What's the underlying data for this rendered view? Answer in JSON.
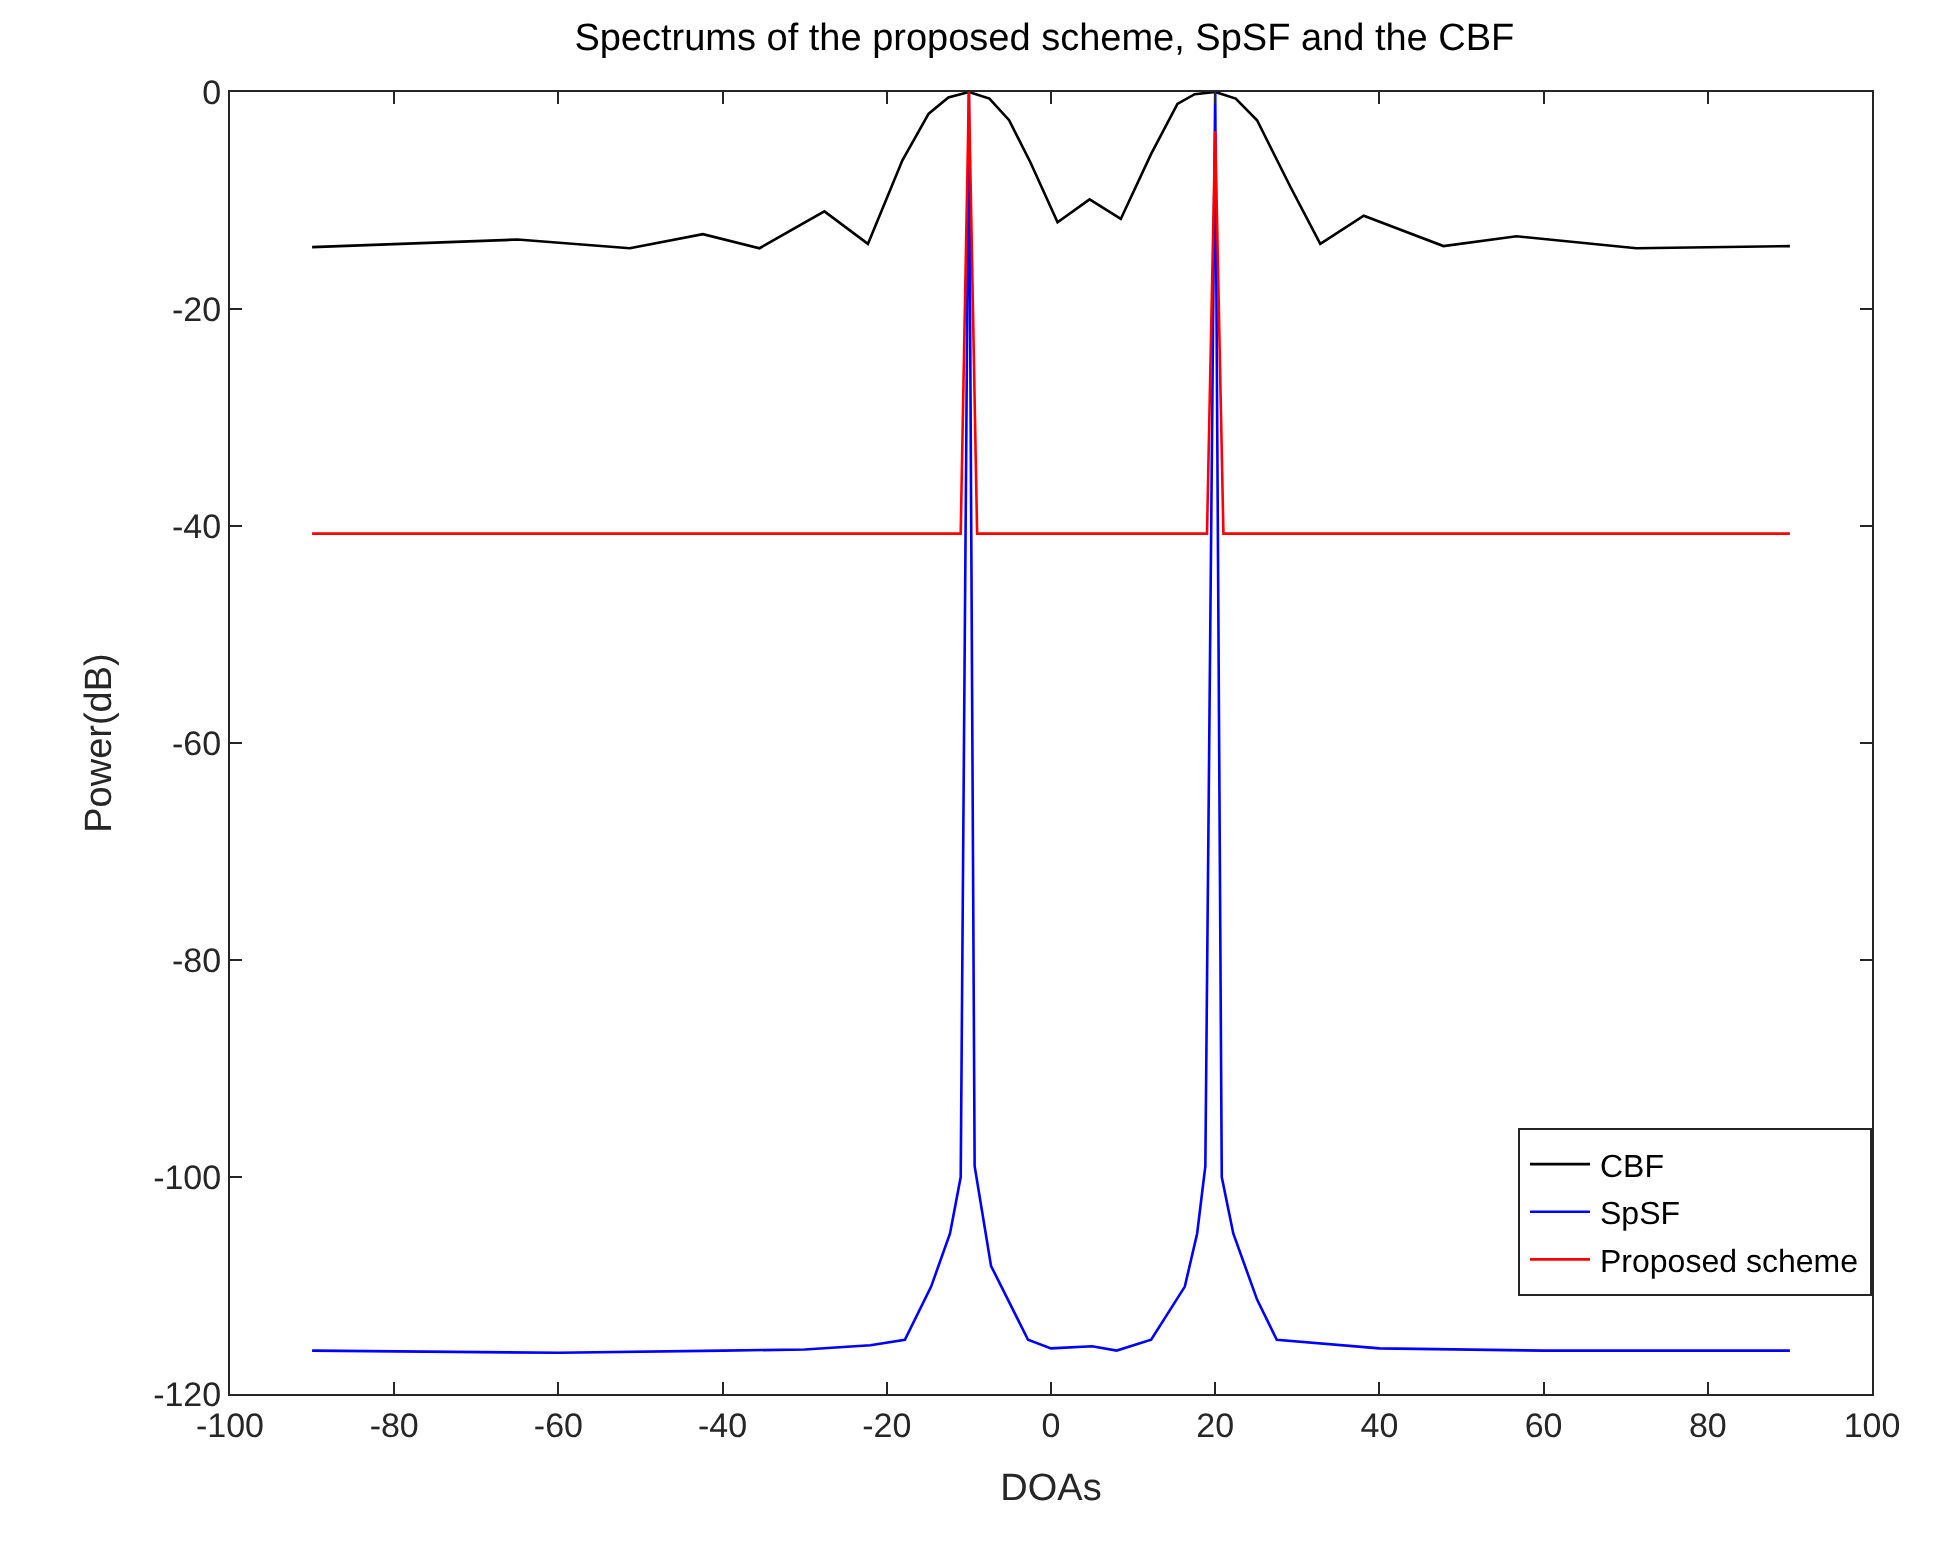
{
  "chart_data": {
    "type": "line",
    "title": "Spectrums of the proposed scheme, SpSF and the CBF",
    "xlabel": "DOAs",
    "ylabel": "Power(dB)",
    "xlim": [
      -100,
      100
    ],
    "xticks": [
      -100,
      -80,
      -60,
      -40,
      -20,
      0,
      20,
      40,
      60,
      80,
      100
    ],
    "ylim": [
      -120,
      0
    ],
    "yticks": [
      -120,
      -100,
      -80,
      -60,
      -40,
      -20,
      0
    ],
    "grid": false,
    "legend": "bottom right",
    "marker": "none",
    "line_style": "solid",
    "series": [
      {
        "name": "CBF",
        "color": "#000000",
        "x": [
          -90,
          -65,
          -51.3,
          -42.4,
          -35.5,
          -27.6,
          -22.3,
          -18.1,
          -14.9,
          -12.5,
          -10,
          -7.5,
          -5.1,
          -2.5,
          0.8,
          4.7,
          8.5,
          12.2,
          15.4,
          17.5,
          20,
          22.5,
          25.1,
          29.2,
          32.8,
          38.1,
          47.8,
          56.7,
          71.3,
          90
        ],
        "values": [
          -14.3,
          -13.6,
          -14.4,
          -13.1,
          -14.4,
          -11.0,
          -14.0,
          -6.3,
          -2.0,
          -0.5,
          0,
          -0.6,
          -2.6,
          -6.5,
          -12.0,
          -9.9,
          -11.7,
          -5.7,
          -1.1,
          -0.2,
          0,
          -0.6,
          -2.6,
          -8.8,
          -14.0,
          -11.4,
          -14.2,
          -13.3,
          -14.4,
          -14.2
        ]
      },
      {
        "name": "SpSF",
        "color": "#0000ff",
        "x": [
          -90,
          -60,
          -40,
          -30,
          -22,
          -17.8,
          -14.6,
          -12.3,
          -11,
          -10,
          -9.3,
          -7.3,
          -2.8,
          0,
          5,
          8,
          12.2,
          16.3,
          17.8,
          18.8,
          20,
          20.8,
          22.2,
          25.1,
          27.5,
          40,
          60,
          90
        ],
        "values": [
          -116,
          -116.2,
          -116,
          -115.9,
          -115.5,
          -115,
          -110.1,
          -105.2,
          -100,
          0,
          -99,
          -108.2,
          -115,
          -115.8,
          -115.6,
          -116,
          -115,
          -110.1,
          -105.2,
          -99,
          0,
          -100,
          -105.2,
          -111.3,
          -115,
          -115.8,
          -116,
          -116
        ]
      },
      {
        "name": "Proposed scheme",
        "color": "#ff0000",
        "x": [
          -90,
          -11,
          -10,
          -9,
          19,
          20,
          21,
          90
        ],
        "values": [
          -40.7,
          -40.7,
          0,
          -40.7,
          -40.7,
          -3.6,
          -40.7,
          -40.7
        ]
      }
    ]
  }
}
